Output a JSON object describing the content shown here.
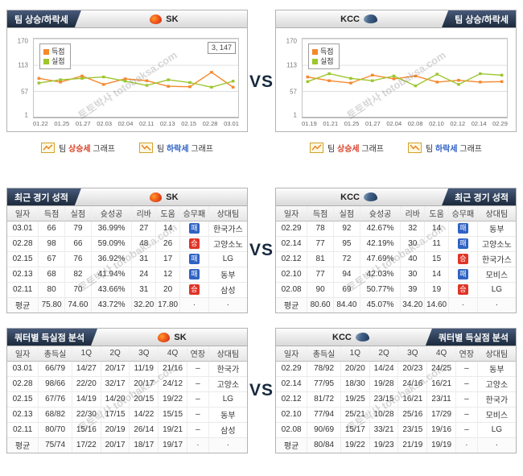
{
  "teams": {
    "left": "SK",
    "right": "KCC"
  },
  "vs_label": "VS",
  "watermark": "토토박사 totobaksa.com",
  "trend": {
    "title": "팀 상승/하락세",
    "legend": {
      "score": "득점",
      "allow": "실점"
    },
    "tooltip_left": "3, 147",
    "footer": {
      "prefix": "팀 ",
      "up": "상승세",
      "down": "하락세",
      "suffix": " 그래프"
    }
  },
  "chart_data": [
    {
      "type": "line",
      "title": "SK 팀 상승/하락세",
      "x": [
        "01.22",
        "01.25",
        "01.27",
        "02.03",
        "02.04",
        "02.11",
        "02.13",
        "02.15",
        "02.28",
        "03.01"
      ],
      "series": [
        {
          "name": "득점",
          "color": "#f6882d",
          "values": [
            85,
            77,
            90,
            72,
            84,
            80,
            68,
            67,
            98,
            66
          ]
        },
        {
          "name": "실점",
          "color": "#9dc62d",
          "values": [
            75,
            82,
            85,
            88,
            79,
            70,
            82,
            76,
            66,
            79
          ]
        }
      ],
      "ylim": [
        1,
        170
      ],
      "yticks": [
        1,
        57,
        113,
        170
      ],
      "grid": true,
      "legend_position": "top-left"
    },
    {
      "type": "line",
      "title": "KCC 팀 상승/하락세",
      "x": [
        "01.19",
        "01.21",
        "01.25",
        "01.27",
        "02.04",
        "02.08",
        "02.10",
        "02.12",
        "02.14",
        "02.29"
      ],
      "series": [
        {
          "name": "득점",
          "color": "#f6882d",
          "values": [
            88,
            80,
            75,
            92,
            84,
            90,
            77,
            81,
            77,
            78
          ]
        },
        {
          "name": "실점",
          "color": "#9dc62d",
          "values": [
            78,
            95,
            85,
            80,
            90,
            69,
            94,
            72,
            95,
            92
          ]
        }
      ],
      "ylim": [
        1,
        170
      ],
      "yticks": [
        1,
        57,
        113,
        170
      ],
      "grid": true,
      "legend_position": "top-left"
    }
  ],
  "recent": {
    "title": "최근 경기 성적",
    "columns": [
      "일자",
      "득점",
      "실점",
      "슛성공",
      "리바",
      "도움",
      "승무패",
      "상대팀"
    ],
    "left": {
      "rows": [
        [
          "03.01",
          "66",
          "79",
          "36.99%",
          "27",
          "14",
          "패",
          "한국가스"
        ],
        [
          "02.28",
          "98",
          "66",
          "59.09%",
          "48",
          "26",
          "승",
          "고양소노"
        ],
        [
          "02.15",
          "67",
          "76",
          "36.92%",
          "31",
          "17",
          "패",
          "LG"
        ],
        [
          "02.13",
          "68",
          "82",
          "41.94%",
          "24",
          "12",
          "패",
          "동부"
        ],
        [
          "02.11",
          "80",
          "70",
          "43.66%",
          "31",
          "20",
          "승",
          "삼성"
        ],
        [
          "평균",
          "75.80",
          "74.60",
          "43.72%",
          "32.20",
          "17.80",
          "·",
          "·"
        ]
      ]
    },
    "right": {
      "rows": [
        [
          "02.29",
          "78",
          "92",
          "42.67%",
          "32",
          "14",
          "패",
          "동부"
        ],
        [
          "02.14",
          "77",
          "95",
          "42.19%",
          "30",
          "11",
          "패",
          "고양소노"
        ],
        [
          "02.12",
          "81",
          "72",
          "47.69%",
          "40",
          "15",
          "승",
          "한국가스"
        ],
        [
          "02.10",
          "77",
          "94",
          "42.03%",
          "30",
          "14",
          "패",
          "모비스"
        ],
        [
          "02.08",
          "90",
          "69",
          "50.77%",
          "39",
          "19",
          "승",
          "LG"
        ],
        [
          "평균",
          "80.60",
          "84.40",
          "45.07%",
          "34.20",
          "14.60",
          "·",
          "·"
        ]
      ]
    }
  },
  "quarter": {
    "title": "쿼터별 득실점 분석",
    "columns": [
      "일자",
      "총득실",
      "1Q",
      "2Q",
      "3Q",
      "4Q",
      "연장",
      "상대팀"
    ],
    "left": {
      "rows": [
        [
          "03.01",
          "66/79",
          "14/27",
          "20/17",
          "11/19",
          "21/16",
          "–",
          "한국가"
        ],
        [
          "02.28",
          "98/66",
          "22/20",
          "32/17",
          "20/17",
          "24/12",
          "–",
          "고양소"
        ],
        [
          "02.15",
          "67/76",
          "14/19",
          "14/20",
          "20/15",
          "19/22",
          "–",
          "LG"
        ],
        [
          "02.13",
          "68/82",
          "22/30",
          "17/15",
          "14/22",
          "15/15",
          "–",
          "동부"
        ],
        [
          "02.11",
          "80/70",
          "15/16",
          "20/19",
          "26/14",
          "19/21",
          "–",
          "삼성"
        ],
        [
          "평균",
          "75/74",
          "17/22",
          "20/17",
          "18/17",
          "19/17",
          "·",
          "·"
        ]
      ]
    },
    "right": {
      "rows": [
        [
          "02.29",
          "78/92",
          "20/20",
          "14/24",
          "20/23",
          "24/25",
          "–",
          "동부"
        ],
        [
          "02.14",
          "77/95",
          "18/30",
          "19/28",
          "24/16",
          "16/21",
          "–",
          "고양소"
        ],
        [
          "02.12",
          "81/72",
          "19/25",
          "23/15",
          "16/21",
          "23/11",
          "–",
          "한국가"
        ],
        [
          "02.10",
          "77/94",
          "25/21",
          "10/28",
          "25/16",
          "17/29",
          "–",
          "모비스"
        ],
        [
          "02.08",
          "90/69",
          "15/17",
          "33/21",
          "23/15",
          "19/16",
          "–",
          "LG"
        ],
        [
          "평균",
          "80/84",
          "19/22",
          "19/23",
          "21/19",
          "19/19",
          "·",
          "·"
        ]
      ]
    }
  }
}
